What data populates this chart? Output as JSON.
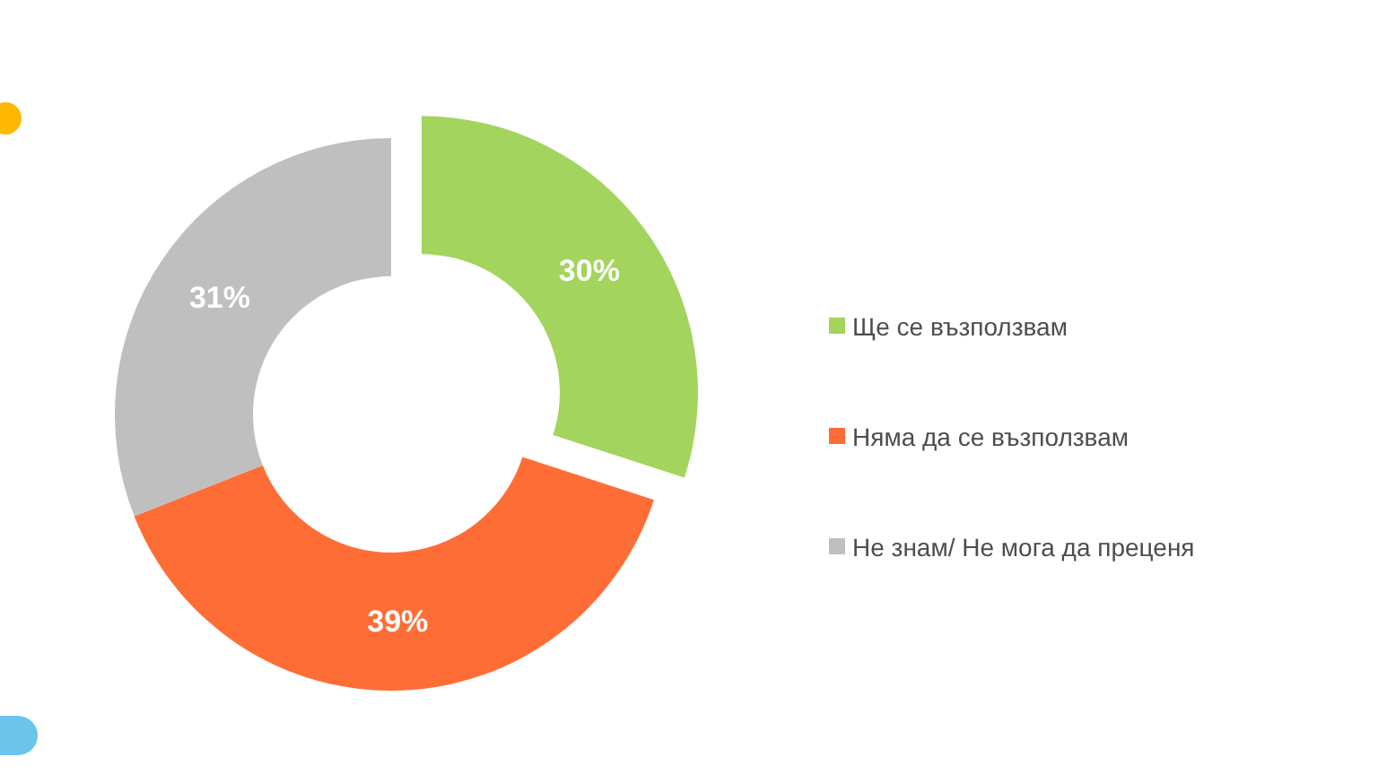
{
  "chart_data": {
    "type": "donut",
    "categories": [
      "Ще се възползвам",
      "Няма да се възползвам",
      "Не знам/ Не мога да преценя"
    ],
    "values": [
      30,
      39,
      31
    ],
    "colors": [
      "#a3d45e",
      "#ff6d37",
      "#bfbfbf"
    ],
    "value_labels": [
      "30%",
      "39%",
      "31%"
    ],
    "legend": "right"
  }
}
